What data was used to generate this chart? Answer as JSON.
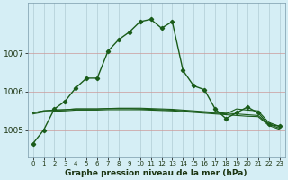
{
  "title": "Graphe pression niveau de la mer (hPa)",
  "background_color": "#d5eef5",
  "grid_color_v": "#b0ccd4",
  "grid_color_h": "#cc9999",
  "line_color": "#1a5c1a",
  "xlim": [
    -0.5,
    23.5
  ],
  "ylim": [
    1004.3,
    1008.3
  ],
  "yticks": [
    1005,
    1006,
    1007
  ],
  "xticks": [
    0,
    1,
    2,
    3,
    4,
    5,
    6,
    7,
    8,
    9,
    10,
    11,
    12,
    13,
    14,
    15,
    16,
    17,
    18,
    19,
    20,
    21,
    22,
    23
  ],
  "series_main": [
    1004.65,
    1005.0,
    1005.55,
    1005.75,
    1006.1,
    1006.35,
    1006.35,
    1007.05,
    1007.35,
    1007.55,
    1007.82,
    1007.88,
    1007.65,
    1007.82,
    1006.55,
    1006.15,
    1006.05,
    1005.55,
    1005.3,
    1005.45,
    1005.6,
    1005.45,
    1005.15,
    1005.1
  ],
  "series_flat1": [
    1005.45,
    1005.5,
    1005.52,
    1005.53,
    1005.55,
    1005.55,
    1005.55,
    1005.56,
    1005.56,
    1005.56,
    1005.55,
    1005.54,
    1005.53,
    1005.52,
    1005.5,
    1005.48,
    1005.46,
    1005.44,
    1005.42,
    1005.55,
    1005.52,
    1005.5,
    1005.2,
    1005.1
  ],
  "series_flat2": [
    1005.45,
    1005.5,
    1005.52,
    1005.53,
    1005.55,
    1005.55,
    1005.55,
    1005.56,
    1005.57,
    1005.57,
    1005.57,
    1005.56,
    1005.55,
    1005.54,
    1005.52,
    1005.5,
    1005.48,
    1005.46,
    1005.44,
    1005.42,
    1005.4,
    1005.38,
    1005.15,
    1005.05
  ],
  "series_flat3": [
    1005.42,
    1005.47,
    1005.49,
    1005.5,
    1005.52,
    1005.52,
    1005.52,
    1005.53,
    1005.53,
    1005.53,
    1005.53,
    1005.52,
    1005.51,
    1005.5,
    1005.48,
    1005.46,
    1005.44,
    1005.42,
    1005.4,
    1005.38,
    1005.36,
    1005.35,
    1005.12,
    1005.02
  ],
  "xlabel_fontsize": 6.5,
  "ytick_fontsize": 6.5,
  "xtick_fontsize": 5.0
}
